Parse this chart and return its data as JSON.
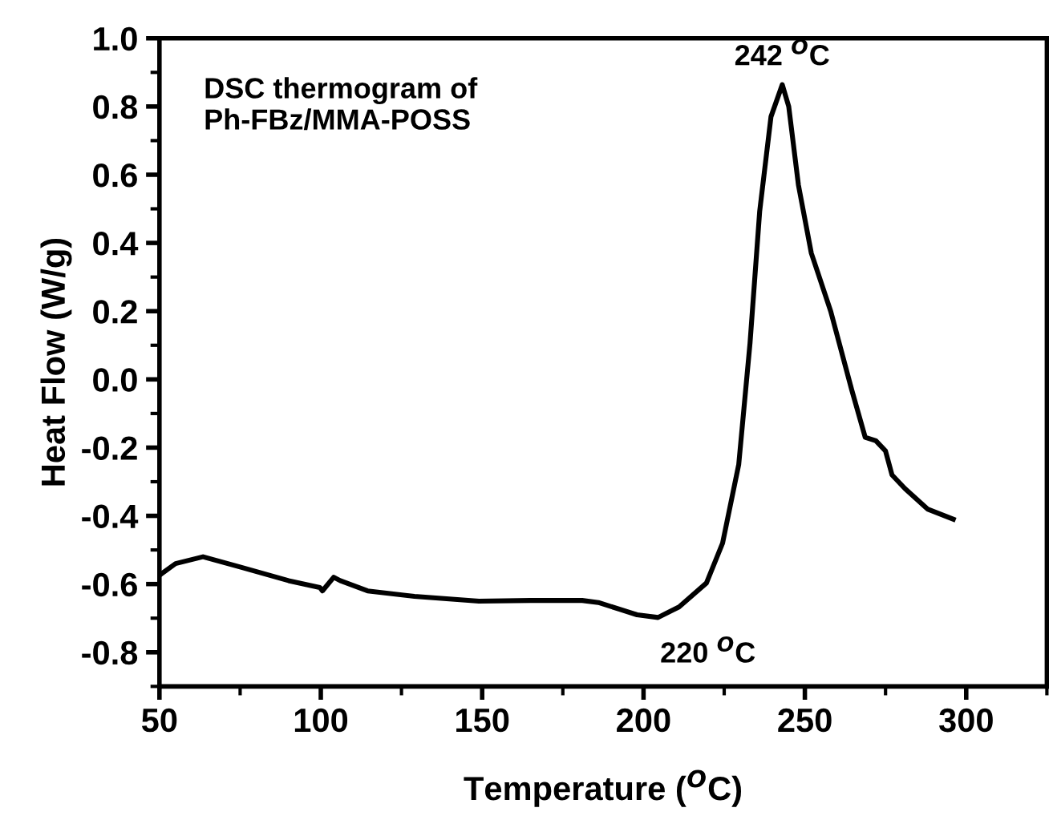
{
  "chart_data": {
    "type": "line",
    "xlabel": "Temperature ($^{O}$C)",
    "ylabel": "Heat Flow (W/g)",
    "annotations": [
      "DSC thermogram of\nPh-FBz/MMA-POSS",
      {
        "text": "242 $^{O}$C",
        "x": 243,
        "y": 0.864
      },
      {
        "text": "220 $^{O}$C",
        "x": 220,
        "y": -0.6
      }
    ],
    "series": [
      {
        "color": "#000000",
        "x": [
          50,
          55,
          63.5,
          75,
          90,
          99.7,
          100.5,
          104,
          106,
          114.5,
          129,
          149,
          165,
          181,
          186,
          198,
          204.5,
          211,
          219.5,
          224.5,
          229.5,
          233,
          236,
          239.5,
          243,
          245,
          248,
          252,
          258,
          264.5,
          268.7,
          272,
          275,
          277,
          281,
          288,
          296
        ],
        "values": [
          -0.574,
          -0.54,
          -0.52,
          -0.55,
          -0.59,
          -0.61,
          -0.62,
          -0.58,
          -0.59,
          -0.62,
          -0.636,
          -0.65,
          -0.648,
          -0.648,
          -0.654,
          -0.69,
          -0.698,
          -0.667,
          -0.597,
          -0.48,
          -0.25,
          0.106,
          0.493,
          0.77,
          0.864,
          0.8,
          0.57,
          0.37,
          0.2,
          -0.03,
          -0.17,
          -0.18,
          -0.21,
          -0.28,
          -0.32,
          -0.38,
          -0.41
        ]
      }
    ],
    "xlim": [
      50,
      325
    ],
    "ylim": [
      -0.9,
      1.0
    ],
    "xticks": [
      50,
      100,
      150,
      200,
      250,
      300
    ],
    "yticks": [
      {
        "value": -0.8,
        "label": "-0.8"
      },
      {
        "value": -0.6,
        "label": "-0.6"
      },
      {
        "value": -0.4,
        "label": "-0.4"
      },
      {
        "value": -0.2,
        "label": "-0.2"
      },
      {
        "value": 0.0,
        "label": "0.0"
      },
      0.2,
      0.4,
      0.6,
      0.8,
      {
        "value": 1.0,
        "label": "1.0"
      }
    ],
    "grid": false,
    "marker": "none",
    "line_style": "solid"
  }
}
